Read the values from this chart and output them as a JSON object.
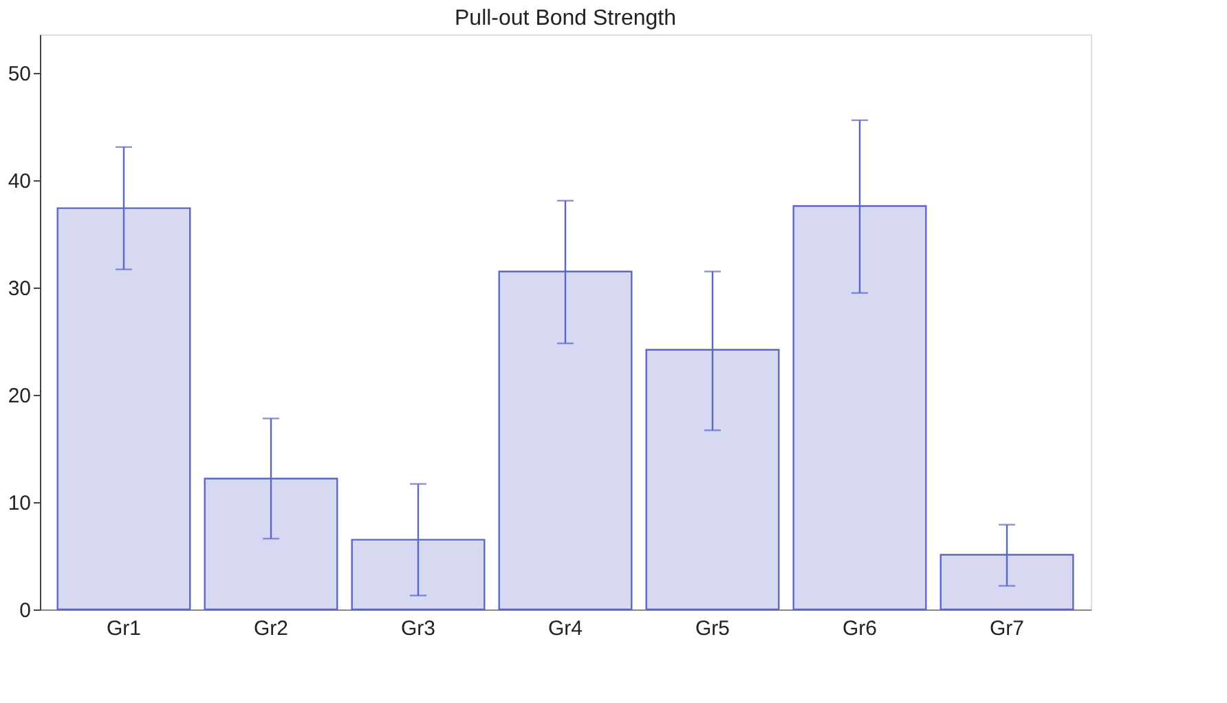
{
  "chart_data": {
    "type": "bar",
    "title": "Pull-out Bond Strength",
    "categories": [
      "Gr1",
      "Gr2",
      "Gr3",
      "Gr4",
      "Gr5",
      "Gr6",
      "Gr7"
    ],
    "values": [
      37.4,
      12.2,
      6.5,
      31.5,
      24.2,
      37.6,
      5.1
    ],
    "errors": [
      [
        31.7,
        43.1
      ],
      [
        6.6,
        17.8
      ],
      [
        1.3,
        11.7
      ],
      [
        24.8,
        38.1
      ],
      [
        16.7,
        31.5
      ],
      [
        29.5,
        45.6
      ],
      [
        2.2,
        7.9
      ]
    ],
    "color": "#5b67c7",
    "ylim": [
      0,
      53.6
    ],
    "yticks": [
      0,
      10,
      20,
      30,
      40,
      50
    ],
    "grid": false
  }
}
